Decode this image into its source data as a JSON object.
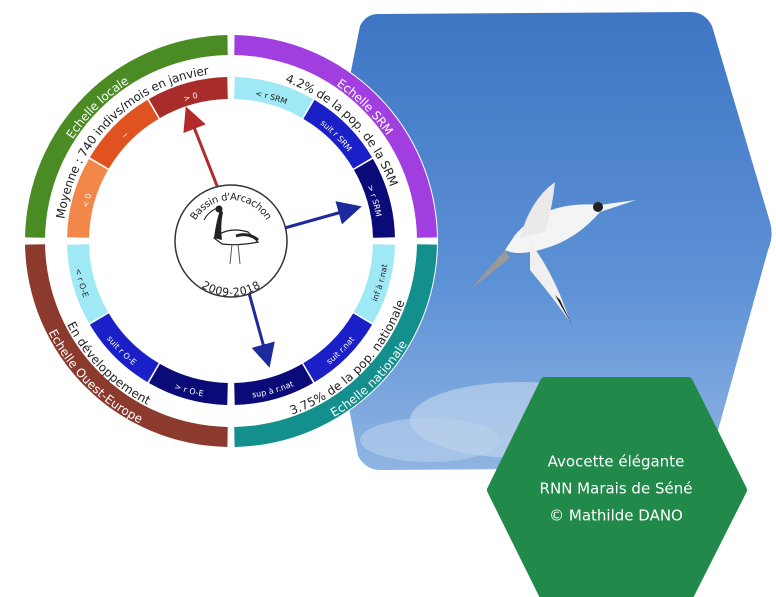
{
  "caption": [
    "Avocette élégante",
    "RNN Marais de Séné",
    "© Mathilde DANO"
  ],
  "center": {
    "title": "Bassin d'Arcachon",
    "period": "2009-2018"
  },
  "quadrants": [
    {
      "name": "Echelle locale",
      "color": "#4a8c23",
      "text": "Moyenne : 740 indivs/mois en janvier",
      "segments": [
        {
          "label": "< 0",
          "color": "#f2874a"
        },
        {
          "label": "~",
          "color": "#e0521f"
        },
        {
          "label": "> 0",
          "color": "#a82c2a"
        }
      ]
    },
    {
      "name": "Echelle SRM",
      "color": "#a13ee0",
      "text": "4.2% de la pop. de la SRM",
      "segments": [
        {
          "label": "< r SRM",
          "color": "#9fe9f6"
        },
        {
          "label": "suit r SRM",
          "color": "#1b1fc8"
        },
        {
          "label": "> r SRM",
          "color": "#0a0a78"
        }
      ]
    },
    {
      "name": "Echelle nationale",
      "color": "#13908e",
      "text": "3.75% de la pop. nationale",
      "segments": [
        {
          "label": "inf à r.nat",
          "color": "#9fe9f6"
        },
        {
          "label": "suit r.nat",
          "color": "#1b1fc8"
        },
        {
          "label": "sup à r.nat",
          "color": "#0a0a78"
        }
      ]
    },
    {
      "name": "Echelle Ouest-Europe",
      "color": "#8c3a2e",
      "text": "En développement",
      "segments": [
        {
          "label": "> r O-E",
          "color": "#0a0a78"
        },
        {
          "label": "suit r O-E",
          "color": "#1b1fc8"
        },
        {
          "label": "< r O-E",
          "color": "#9fe9f6"
        }
      ]
    }
  ]
}
